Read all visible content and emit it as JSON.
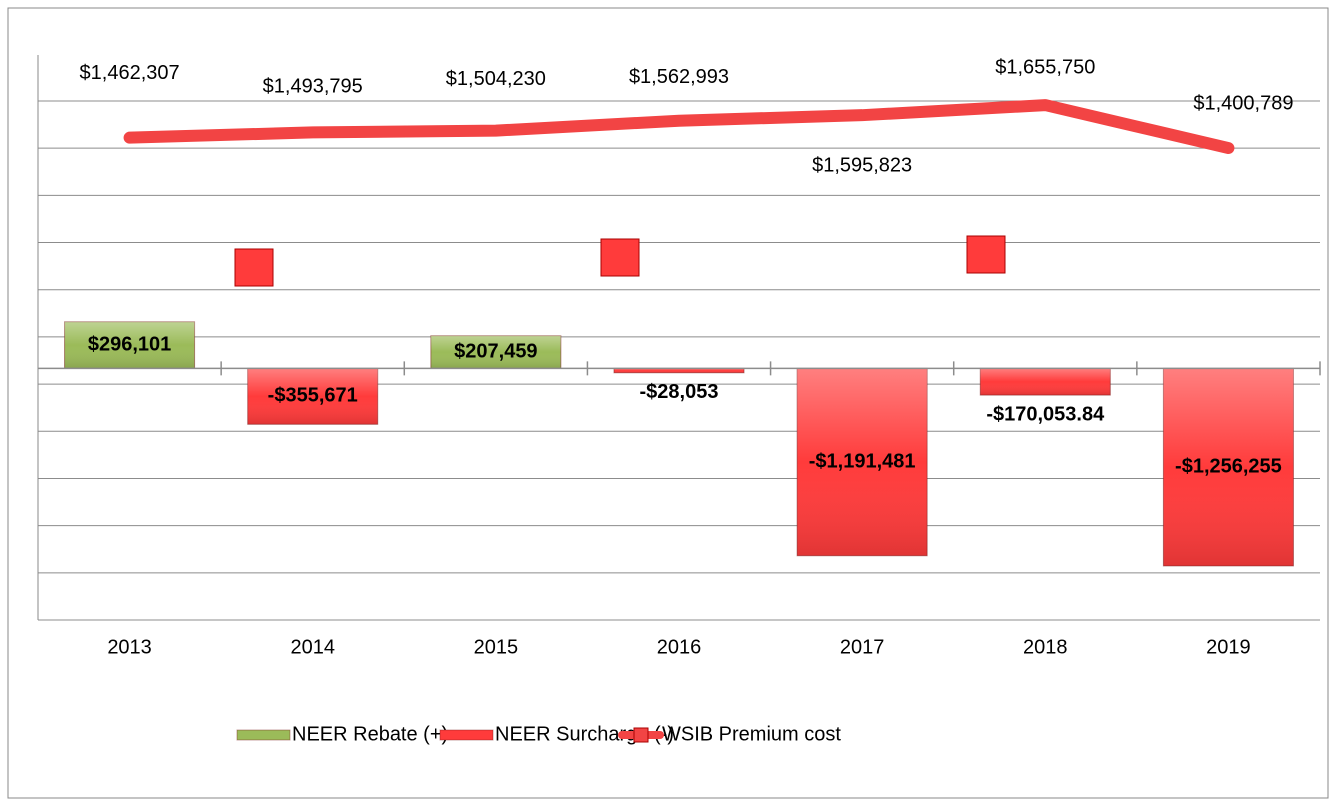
{
  "chart_data": {
    "type": "combo",
    "categories": [
      "2013",
      "2014",
      "2015",
      "2016",
      "2017",
      "2018",
      "2019"
    ],
    "series": [
      {
        "name": "NEER Rebate (+)",
        "type": "bar",
        "color": "#9bbb59",
        "values": [
          296101,
          null,
          207459,
          null,
          null,
          null,
          null
        ],
        "value_labels": [
          "$296,101",
          null,
          "$207,459",
          null,
          null,
          null,
          null
        ]
      },
      {
        "name": "NEER Surcharge (-)",
        "type": "bar",
        "color": "#ff3b3b",
        "values": [
          null,
          -355671,
          null,
          -28053,
          -1191481,
          -170053.84,
          -1256255
        ],
        "value_labels": [
          null,
          "-$355,671",
          null,
          "-$28,053",
          "-$1,191,481",
          "-$170,053.84",
          "-$1,256,255"
        ]
      },
      {
        "name": "WSIB Premium cost",
        "type": "line",
        "axis": "y2",
        "color": "#f24444",
        "values": [
          1462307,
          1493795,
          1504230,
          1562993,
          1595823,
          1655750,
          1400789
        ],
        "value_labels": [
          "$1,462,307",
          "$1,493,795",
          "$1,504,230",
          "$1,562,993",
          "$1,595,823",
          "$1,655,750",
          "$1,400,789"
        ]
      }
    ],
    "ylim": [
      -1600000,
      1700000
    ],
    "y2lim": [
      -1400000,
      1680000
    ],
    "y2ticks": [
      -1400000,
      -1120000,
      -840000,
      -560000,
      -280000,
      0,
      280000,
      560000,
      840000,
      1120000,
      1400000,
      1680000
    ],
    "grid": true,
    "legend": "bottom"
  }
}
